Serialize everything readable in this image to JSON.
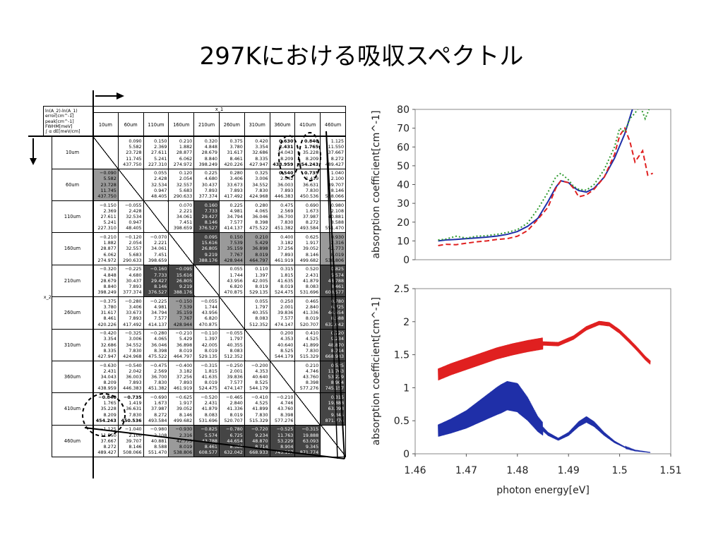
{
  "title": "297Kにおける吸収スペクトル",
  "table": {
    "corner_lines": [
      "ln(A_2)-ln(A_1)",
      "error[cm^-1]",
      "peak[cm^-1]",
      "FWHM[meV]",
      "∫ α dE[meV/cm]"
    ],
    "col_group_label": "x_1",
    "row_group_label": "x_2",
    "headers": [
      "10um",
      "60um",
      "110um",
      "160um",
      "210um",
      "260um",
      "310um",
      "360um",
      "410um",
      "460um"
    ],
    "rows": [
      {
        "label": "10um",
        "cells": [
          null,
          [
            "0.090",
            "5.582",
            "23.728",
            "11.745",
            "437.750"
          ],
          [
            "0.150",
            "2.369",
            "27.611",
            "5.241",
            "227.310"
          ],
          [
            "0.210",
            "1.882",
            "28.877",
            "6.062",
            "274.972"
          ],
          [
            "0.320",
            "4.848",
            "28.679",
            "8.840",
            "398.249"
          ],
          [
            "0.375",
            "3.780",
            "31.617",
            "8.461",
            "420.226"
          ],
          [
            "0.420",
            "3.354",
            "32.686",
            "8.335",
            "427.947"
          ],
          [
            "0.630",
            "2.431",
            "34.043",
            "8.209",
            "438.959"
          ],
          [
            "0.840",
            "1.765",
            "35.228",
            "8.209",
            "454.243"
          ],
          [
            "1.125",
            "11.550",
            "37.667",
            "8.272",
            "489.427"
          ]
        ]
      },
      {
        "label": "60um",
        "cells": [
          [
            "−0.090",
            "5.582",
            "23.728",
            "11.745",
            "437.750"
          ],
          null,
          [
            "0.055",
            "2.428",
            "32.534",
            "0.947",
            "48.405"
          ],
          [
            "0.120",
            "2.054",
            "32.557",
            "5.683",
            "290.633"
          ],
          [
            "0.225",
            "4.680",
            "30.437",
            "7.893",
            "377.374"
          ],
          [
            "0.280",
            "3.406",
            "33.673",
            "7.893",
            "417.492"
          ],
          [
            "0.325",
            "3.006",
            "34.552",
            "7.830",
            "424.968"
          ],
          [
            "0.540",
            "2.042",
            "36.003",
            "7.893",
            "446.383"
          ],
          [
            "0.735",
            "1.419",
            "36.631",
            "7.830",
            "450.536"
          ],
          [
            "1.040",
            "2.100",
            "39.707",
            "8.146",
            "508.066"
          ]
        ]
      },
      {
        "label": "110um",
        "cells": [
          [
            "−0.150",
            "2.369",
            "27.611",
            "5.241",
            "227.310"
          ],
          [
            "−0.055",
            "2.428",
            "32.534",
            "0.947",
            "48.405"
          ],
          null,
          [
            "0.070",
            "2.221",
            "34.061",
            "7.451",
            "398.659"
          ],
          [
            "0.160",
            "7.733",
            "29.427",
            "8.146",
            "376.527"
          ],
          [
            "0.225",
            "4.981",
            "34.794",
            "7.577",
            "414.137"
          ],
          [
            "0.280",
            "4.065",
            "36.046",
            "8.398",
            "475.522"
          ],
          [
            "0.475",
            "2.569",
            "36.700",
            "7.830",
            "451.382"
          ],
          [
            "0.690",
            "1.673",
            "37.987",
            "8.272",
            "493.584"
          ],
          [
            "0.980",
            "2.108",
            "40.881",
            "8.588",
            "551.470"
          ]
        ]
      },
      {
        "label": "160um",
        "cells": [
          [
            "−0.210",
            "1.882",
            "28.877",
            "6.062",
            "274.972"
          ],
          [
            "−0.120",
            "2.054",
            "32.557",
            "5.683",
            "290.633"
          ],
          [
            "−0.070",
            "2.221",
            "34.061",
            "7.451",
            "398.659"
          ],
          null,
          [
            "0.095",
            "15.616",
            "26.805",
            "9.219",
            "388.176"
          ],
          [
            "0.150",
            "7.539",
            "35.159",
            "7.767",
            "428.944"
          ],
          [
            "0.210",
            "5.429",
            "36.898",
            "8.019",
            "464.797"
          ],
          [
            "0.400",
            "3.182",
            "37.256",
            "7.893",
            "461.919"
          ],
          [
            "0.625",
            "1.917",
            "39.052",
            "8.146",
            "499.682"
          ],
          [
            "0.930",
            "2.316",
            "42.773",
            "8.019",
            "538.806"
          ]
        ]
      },
      {
        "label": "210um",
        "cells": [
          [
            "−0.320",
            "4.848",
            "28.679",
            "8.840",
            "398.249"
          ],
          [
            "−0.225",
            "4.680",
            "30.437",
            "7.893",
            "377.374"
          ],
          [
            "−0.160",
            "7.733",
            "29.427",
            "8.146",
            "376.527"
          ],
          [
            "−0.095",
            "15.616",
            "26.805",
            "9.219",
            "388.176"
          ],
          null,
          [
            "0.055",
            "1.744",
            "43.956",
            "6.820",
            "470.875"
          ],
          [
            "0.110",
            "1.397",
            "42.005",
            "8.019",
            "529.135"
          ],
          [
            "0.315",
            "1.815",
            "41.635",
            "8.019",
            "524.475"
          ],
          [
            "0.520",
            "2.431",
            "41.879",
            "8.083",
            "531.696"
          ],
          [
            "0.825",
            "5.574",
            "43.788",
            "8.461",
            "608.577"
          ]
        ]
      },
      {
        "label": "260um",
        "cells": [
          [
            "−0.375",
            "3.780",
            "31.617",
            "8.461",
            "420.226"
          ],
          [
            "−0.280",
            "3.406",
            "33.673",
            "7.893",
            "417.492"
          ],
          [
            "−0.225",
            "4.981",
            "34.794",
            "7.577",
            "414.137"
          ],
          [
            "−0.150",
            "7.539",
            "35.159",
            "7.767",
            "428.944"
          ],
          [
            "−0.055",
            "1.744",
            "43.956",
            "6.820",
            "470.875"
          ],
          null,
          [
            "0.055",
            "1.797",
            "40.355",
            "8.083",
            "512.352"
          ],
          [
            "0.250",
            "2.001",
            "39.836",
            "7.577",
            "474.147"
          ],
          [
            "0.465",
            "2.840",
            "41.336",
            "8.019",
            "520.707"
          ],
          [
            "0.780",
            "6.725",
            "44.654",
            "8.588",
            "632.042"
          ]
        ]
      },
      {
        "label": "310um",
        "cells": [
          [
            "−0.420",
            "3.354",
            "32.686",
            "8.335",
            "427.947"
          ],
          [
            "−0.325",
            "3.006",
            "34.552",
            "7.830",
            "424.968"
          ],
          [
            "−0.280",
            "4.065",
            "36.046",
            "8.398",
            "475.522"
          ],
          [
            "−0.210",
            "5.429",
            "36.898",
            "8.019",
            "464.797"
          ],
          [
            "−0.110",
            "1.397",
            "42.005",
            "8.019",
            "529.135"
          ],
          [
            "−0.055",
            "1.797",
            "40.355",
            "8.083",
            "512.352"
          ],
          null,
          [
            "0.200",
            "4.353",
            "40.640",
            "8.525",
            "544.179"
          ],
          [
            "0.410",
            "4.525",
            "41.899",
            "7.830",
            "515.329"
          ],
          [
            "0.720",
            "9.234",
            "48.870",
            "8.714",
            "668.933"
          ]
        ]
      },
      {
        "label": "360um",
        "cells": [
          [
            "−0.630",
            "2.431",
            "34.043",
            "8.209",
            "438.959"
          ],
          [
            "−0.540",
            "2.042",
            "36.003",
            "7.893",
            "446.383"
          ],
          [
            "−0.475",
            "2.569",
            "36.700",
            "7.830",
            "451.382"
          ],
          [
            "−0.400",
            "3.182",
            "37.256",
            "7.893",
            "461.919"
          ],
          [
            "−0.315",
            "1.815",
            "41.635",
            "8.019",
            "524.475"
          ],
          [
            "−0.250",
            "2.001",
            "39.836",
            "7.577",
            "474.147"
          ],
          [
            "−0.200",
            "4.353",
            "40.640",
            "8.525",
            "544.179"
          ],
          null,
          [
            "0.210",
            "4.746",
            "43.760",
            "8.398",
            "577.276"
          ],
          [
            "0.525",
            "11.763",
            "53.229",
            "8.904",
            "745.157"
          ]
        ]
      },
      {
        "label": "410um",
        "cells": [
          [
            "−0.840",
            "1.765",
            "35.228",
            "8.209",
            "454.243"
          ],
          [
            "−0.735",
            "1.419",
            "36.631",
            "7.830",
            "450.536"
          ],
          [
            "−0.690",
            "1.673",
            "37.987",
            "8.272",
            "493.584"
          ],
          [
            "−0.625",
            "1.917",
            "39.052",
            "8.146",
            "499.682"
          ],
          [
            "−0.520",
            "2.431",
            "41.879",
            "8.083",
            "531.696"
          ],
          [
            "−0.465",
            "2.840",
            "41.336",
            "8.019",
            "520.707"
          ],
          [
            "−0.410",
            "4.525",
            "41.899",
            "7.830",
            "515.329"
          ],
          [
            "−0.210",
            "4.746",
            "43.760",
            "8.398",
            "577.276"
          ],
          null,
          [
            "0.315",
            "19.888",
            "63.093",
            "9.345",
            "871.774"
          ]
        ]
      },
      {
        "label": "460um",
        "cells": [
          [
            "−1.125",
            "11.550",
            "37.667",
            "8.272",
            "489.427"
          ],
          [
            "−1.040",
            "2.100",
            "39.707",
            "8.146",
            "508.066"
          ],
          [
            "−0.980",
            "2.108",
            "40.881",
            "8.588",
            "551.470"
          ],
          [
            "−0.930",
            "2.316",
            "42.773",
            "8.019",
            "538.806"
          ],
          [
            "−0.825",
            "5.574",
            "43.788",
            "8.461",
            "608.577"
          ],
          [
            "−0.780",
            "6.725",
            "44.654",
            "8.588",
            "632.042"
          ],
          [
            "−0.720",
            "9.234",
            "48.870",
            "8.714",
            "668.933"
          ],
          [
            "−0.525",
            "11.763",
            "53.229",
            "8.904",
            "745.157"
          ],
          [
            "−0.315",
            "19.888",
            "63.093",
            "9.345",
            "871.774"
          ],
          null
        ]
      }
    ]
  },
  "chart_data": [
    {
      "type": "line",
      "ylabel": "absorption coefficient[cm^-1]",
      "xlim": [
        1.46,
        1.51
      ],
      "ylim": [
        0,
        80
      ],
      "yticks": [
        "0",
        "10",
        "20",
        "30",
        "40",
        "50",
        "60",
        "70",
        "80"
      ],
      "series": [
        {
          "color": "#1f2fa8",
          "style": "solid",
          "x": [
            1.4645,
            1.466,
            1.468,
            1.47,
            1.472,
            1.474,
            1.476,
            1.478,
            1.48,
            1.482,
            1.484,
            1.486,
            1.4875,
            1.4885,
            1.49,
            1.491,
            1.492,
            1.4935,
            1.495,
            1.497,
            1.499,
            1.501,
            1.5025
          ],
          "values": [
            10.0,
            10.5,
            10.8,
            11.2,
            11.6,
            12.0,
            12.6,
            13.5,
            15.0,
            17.8,
            22.0,
            31.0,
            38.5,
            42.0,
            41.0,
            38.5,
            36.8,
            36.0,
            38.0,
            44.0,
            54.0,
            67.0,
            80.0
          ]
        },
        {
          "color": "#e02020",
          "style": "dashed",
          "x": [
            1.4645,
            1.466,
            1.468,
            1.47,
            1.472,
            1.474,
            1.476,
            1.478,
            1.48,
            1.482,
            1.484,
            1.486,
            1.4875,
            1.4885,
            1.49,
            1.491,
            1.492,
            1.4935,
            1.495,
            1.497,
            1.499,
            1.5,
            1.501,
            1.502,
            1.503,
            1.5045,
            1.5055,
            1.5065
          ],
          "values": [
            7.5,
            8.2,
            8.0,
            8.8,
            9.5,
            10.0,
            10.8,
            11.2,
            12.5,
            15.5,
            21.5,
            28.0,
            38.0,
            42.0,
            41.0,
            38.0,
            33.5,
            34.5,
            37.5,
            44.0,
            56.0,
            66.0,
            70.0,
            63.0,
            52.0,
            58.0,
            45.0,
            46.0
          ]
        },
        {
          "color": "#2e9a2e",
          "style": "dotted",
          "x": [
            1.4645,
            1.466,
            1.468,
            1.47,
            1.472,
            1.474,
            1.476,
            1.478,
            1.48,
            1.482,
            1.484,
            1.486,
            1.4875,
            1.4885,
            1.49,
            1.491,
            1.492,
            1.4935,
            1.495,
            1.497,
            1.499,
            1.5,
            1.501,
            1.502,
            1.503,
            1.504,
            1.505,
            1.5065
          ],
          "values": [
            10.5,
            11.0,
            12.5,
            11.5,
            12.5,
            12.8,
            13.5,
            14.5,
            16.0,
            19.5,
            27.0,
            36.0,
            44.0,
            46.0,
            42.5,
            39.0,
            37.5,
            37.0,
            40.0,
            48.0,
            60.0,
            70.0,
            68.0,
            75.0,
            78.0,
            82.0,
            75.0,
            85.0
          ]
        }
      ]
    },
    {
      "type": "line",
      "xlabel": "photon energy[eV]",
      "ylabel": "absorption coefficient[cm^-1]",
      "xlim": [
        1.46,
        1.51
      ],
      "ylim": [
        0,
        2.5
      ],
      "xticks": [
        "1.46",
        "1.47",
        "1.48",
        "1.49",
        "1.5",
        "1.51"
      ],
      "yticks": [
        "0",
        "0.5",
        "1",
        "1.5",
        "2",
        "2.5"
      ],
      "series": [
        {
          "color": "#e02020",
          "style": "solid",
          "x": [
            1.4645,
            1.467,
            1.47,
            1.473,
            1.476,
            1.479,
            1.482,
            1.485,
            1.488,
            1.491,
            1.4935,
            1.496,
            1.498,
            1.5,
            1.502,
            1.5035,
            1.505,
            1.506
          ],
          "values": [
            1.2,
            1.28,
            1.36,
            1.44,
            1.52,
            1.58,
            1.63,
            1.67,
            1.66,
            1.76,
            1.9,
            1.98,
            1.96,
            1.85,
            1.7,
            1.58,
            1.45,
            1.38
          ]
        },
        {
          "color": "#1f2fa8",
          "style": "solid",
          "x": [
            1.4645,
            1.467,
            1.47,
            1.473,
            1.476,
            1.478,
            1.48,
            1.482,
            1.484,
            1.486,
            1.488,
            1.49,
            1.492,
            1.4935,
            1.495,
            1.497,
            1.499,
            1.501,
            1.503,
            1.505,
            1.506
          ],
          "values": [
            0.35,
            0.42,
            0.52,
            0.66,
            0.8,
            0.88,
            0.85,
            0.68,
            0.45,
            0.3,
            0.22,
            0.3,
            0.45,
            0.52,
            0.45,
            0.3,
            0.18,
            0.1,
            0.05,
            0.03,
            0.02
          ]
        }
      ]
    }
  ]
}
